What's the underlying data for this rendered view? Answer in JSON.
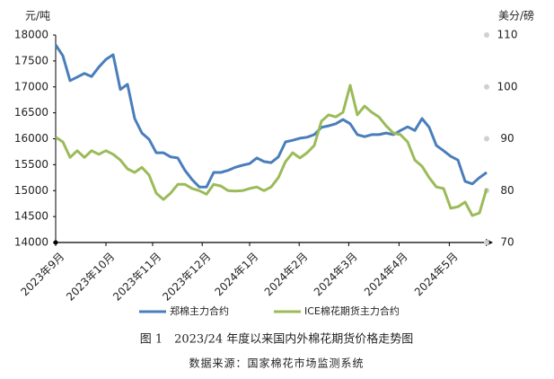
{
  "chart_data": {
    "type": "line",
    "title": "图 1　2023/24 年度以来国内外棉花期货价格走势图",
    "source": "数据来源：国家棉花市场监测系统",
    "y_label": "元/吨",
    "y2_label": "美分/磅",
    "xlim": [
      0,
      60
    ],
    "xticks": [
      {
        "value": 0,
        "label": "2023年9月"
      },
      {
        "value": 7,
        "label": "2023年10月"
      },
      {
        "value": 13.5,
        "label": "2023年11月"
      },
      {
        "value": 20.4,
        "label": "2023年12月"
      },
      {
        "value": 27,
        "label": "2024年1月"
      },
      {
        "value": 33.9,
        "label": "2024年2月"
      },
      {
        "value": 40.8,
        "label": "2024年3月"
      },
      {
        "value": 47.8,
        "label": "2024年4月"
      },
      {
        "value": 54.8,
        "label": "2024年5月"
      }
    ],
    "ylim": [
      14000,
      18000
    ],
    "yticks": [
      14000,
      14500,
      15000,
      15500,
      16000,
      16500,
      17000,
      17500,
      18000
    ],
    "y2lim": [
      70,
      110
    ],
    "y2ticks": [
      70,
      80,
      90,
      100,
      110
    ],
    "series": [
      {
        "name": "郑棉主力合约",
        "color": "#4a7ebb",
        "values": [
          17810,
          17600,
          17120,
          17190,
          17260,
          17200,
          17380,
          17530,
          17620,
          16950,
          17050,
          16390,
          16110,
          15990,
          15730,
          15730,
          15650,
          15630,
          15390,
          15210,
          15070,
          15070,
          15350,
          15350,
          15390,
          15450,
          15490,
          15520,
          15630,
          15560,
          15540,
          15650,
          15940,
          15970,
          16010,
          16030,
          16080,
          16220,
          16250,
          16290,
          16370,
          16290,
          16080,
          16040,
          16080,
          16080,
          16110,
          16080,
          16160,
          16230,
          16160,
          16390,
          16220,
          15870,
          15770,
          15660,
          15590,
          15180,
          15130,
          15250,
          15350
        ]
      },
      {
        "name": "ICE棉花期货主力合约",
        "color": "#9bbb59",
        "axis": "y2",
        "values": [
          90.3,
          89.4,
          86.4,
          87.7,
          86.4,
          87.7,
          87.0,
          87.7,
          87.0,
          85.9,
          84.2,
          83.5,
          84.5,
          83.0,
          79.5,
          78.3,
          79.5,
          81.2,
          81.2,
          80.4,
          80.0,
          79.3,
          81.2,
          80.9,
          80.0,
          79.9,
          80.0,
          80.4,
          80.7,
          80.0,
          80.7,
          82.5,
          85.6,
          87.3,
          86.3,
          87.3,
          88.7,
          93.4,
          94.6,
          94.2,
          95.1,
          100.3,
          94.6,
          96.3,
          95.1,
          94.2,
          92.5,
          91.1,
          90.8,
          89.4,
          85.9,
          84.7,
          82.5,
          80.7,
          80.4,
          76.6,
          76.9,
          77.8,
          75.2,
          75.7,
          80.4
        ]
      }
    ]
  }
}
